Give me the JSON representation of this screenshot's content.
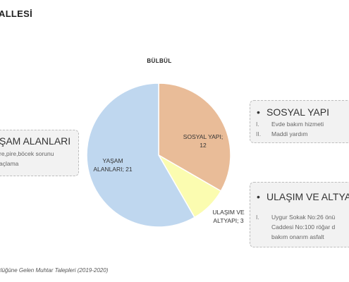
{
  "page_title": "ALLESİ",
  "source_note": "rlüğüne Gelen Muhtar Talepleri (2019-2020)",
  "chart_data": {
    "type": "pie",
    "title": "BÜLBÜL",
    "slices": [
      {
        "label_line1": "SOSYAL YAPI;",
        "label_line2": "12",
        "name": "SOSYAL YAPI",
        "value": 12,
        "color": "#e9bc98"
      },
      {
        "label_line1": "ULAŞIM VE",
        "label_line2": "ALTYAPI; 3",
        "name": "ULAŞIM VE ALTYAPI",
        "value": 3,
        "color": "#fbfcb0"
      },
      {
        "label_line1": "YAŞAM",
        "label_line2": "ALANLARI; 21",
        "name": "YAŞAM ALANLARI",
        "value": 21,
        "color": "#bfd7ef"
      }
    ]
  },
  "callouts": {
    "sosyal": {
      "bullet": "•",
      "heading": "SOSYAL YAPI",
      "items": [
        {
          "num": "I.",
          "text": "Evde bakım hizmeti"
        },
        {
          "num": "II.",
          "text": "Maddi yardım"
        }
      ]
    },
    "yasam": {
      "heading": "ŞAM ALANLARI",
      "line1": "re,pire,böcek  sorunu",
      "line2": "açlama"
    },
    "ulasim": {
      "bullet": "•",
      "heading": "ULAŞIM VE ALTYA",
      "item_num": "I.",
      "line1": "Uygur Sokak No:26 önü",
      "line2": "Caddesi No:100 röğar d",
      "line3": "bakım onarım asfalt"
    }
  }
}
